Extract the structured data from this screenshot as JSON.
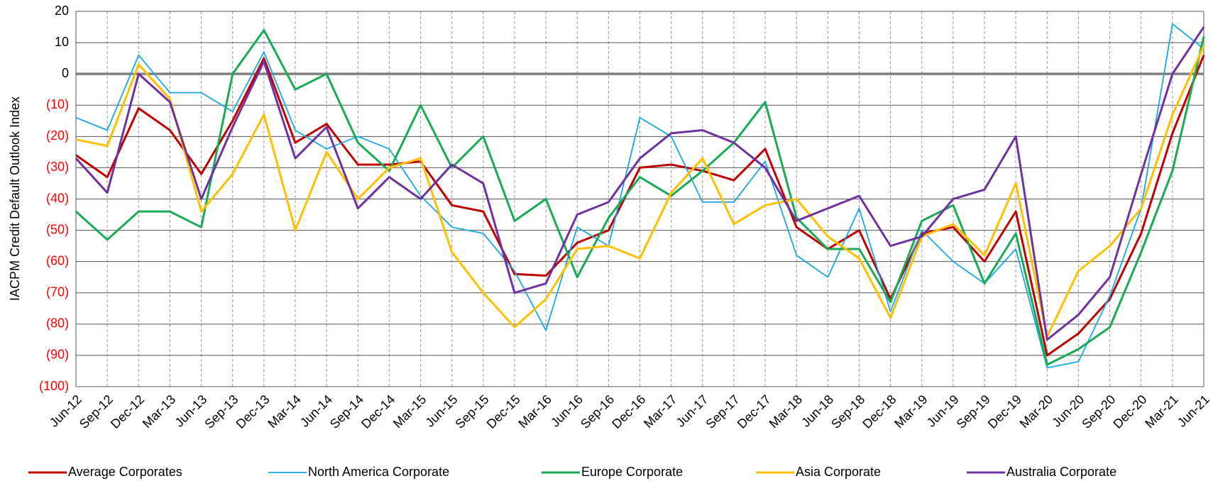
{
  "chart_data": {
    "type": "line",
    "y_label": "IACPM Credit Default Outlook Index",
    "categories": [
      "Jun-12",
      "Sep-12",
      "Dec-12",
      "Mar-13",
      "Jun-13",
      "Sep-13",
      "Dec-13",
      "Mar-14",
      "Jun-14",
      "Sep-14",
      "Dec-14",
      "Mar-15",
      "Jun-15",
      "Sep-15",
      "Dec-15",
      "Mar-16",
      "Jun-16",
      "Sep-16",
      "Dec-16",
      "Mar-17",
      "Jun-17",
      "Sep-17",
      "Dec-17",
      "Mar-18",
      "Jun-18",
      "Sep-18",
      "Dec-18",
      "Mar-19",
      "Jun-19",
      "Sep-19",
      "Dec-19",
      "Mar-20",
      "Jun-20",
      "Sep-20",
      "Dec-20",
      "Mar-21",
      "Jun-21"
    ],
    "series": [
      {
        "name": "Average Corporates",
        "color": "#c00000",
        "line_width": 3,
        "values": [
          -26,
          -33,
          -11,
          -18,
          -32,
          -15,
          5,
          -22,
          -16,
          -29,
          -29,
          -28,
          -42,
          -44,
          -64,
          -64.5,
          -54,
          -50,
          -30,
          -29,
          -31,
          -34,
          -24,
          -49,
          -56,
          -50,
          -72,
          -51,
          -49,
          -60,
          -44,
          -90,
          -83,
          -72,
          -51,
          -19,
          6
        ]
      },
      {
        "name": "North America Corporate",
        "color": "#1aa7e8",
        "line_width": 1.8,
        "values": [
          -14,
          -18,
          6,
          -6,
          -6,
          -12,
          7,
          -18,
          -24,
          -20,
          -24,
          -39,
          -49,
          -51,
          -63,
          -82,
          -49,
          -55,
          -14,
          -20,
          -41,
          -41,
          -28,
          -58,
          -65,
          -43,
          -76,
          -50,
          -60,
          -67,
          -56,
          -94,
          -92,
          -71,
          -43,
          16,
          8
        ]
      },
      {
        "name": "Europe Corporate",
        "color": "#1aaa55",
        "line_width": 3,
        "values": [
          -44,
          -53,
          -44,
          -44,
          -49,
          0,
          14,
          -5,
          0,
          -22,
          -31,
          -10,
          -30,
          -20,
          -47,
          -40,
          -65,
          -46,
          -33,
          -39,
          -31,
          -22,
          -9,
          -46,
          -56,
          -56,
          -73,
          -47,
          -42,
          -67,
          -51,
          -93,
          -88,
          -81,
          -57,
          -31,
          12
        ]
      },
      {
        "name": "Asia Corporate",
        "color": "#ffc000",
        "line_width": 3,
        "values": [
          -21,
          -23,
          3,
          -8,
          -44,
          -32,
          -13,
          -50,
          -25,
          -40,
          -30,
          -27,
          -57,
          -70,
          -81,
          -72,
          -56,
          -55,
          -59,
          -38,
          -27,
          -48,
          -42,
          -40,
          -52,
          -59,
          -78,
          -52,
          -48,
          -58,
          -35,
          -84,
          -63,
          -55,
          -43,
          -13,
          9
        ]
      },
      {
        "name": "Australia Corporate",
        "color": "#7030a0",
        "line_width": 3,
        "values": [
          -27,
          -38,
          0,
          -9,
          -40,
          -17,
          4,
          -27,
          -17,
          -43,
          -33,
          -40,
          -29,
          -35,
          -70,
          -67,
          -45,
          -41,
          -27,
          -19,
          -18,
          -22,
          -30,
          -47,
          -43,
          -39,
          -55,
          -52,
          -40,
          -37,
          -20,
          -85,
          -77,
          -65,
          -32,
          0,
          15
        ]
      }
    ],
    "ylim": [
      -100,
      20
    ],
    "yticks": [
      20,
      10,
      0,
      {
        "value": -10,
        "label": "(10)"
      },
      {
        "value": -20,
        "label": "(20)"
      },
      {
        "value": -30,
        "label": "(30)"
      },
      {
        "value": -40,
        "label": "(40)"
      },
      {
        "value": -50,
        "label": "(50)"
      },
      {
        "value": -60,
        "label": "(60)"
      },
      {
        "value": -70,
        "label": "(70)"
      },
      {
        "value": -80,
        "label": "(80)"
      },
      {
        "value": -90,
        "label": "(90)"
      },
      {
        "value": -100,
        "label": "(100)"
      }
    ],
    "negative_tick_color": "#ff0000",
    "grid": true,
    "zero_line": true,
    "legend": "bottom"
  }
}
